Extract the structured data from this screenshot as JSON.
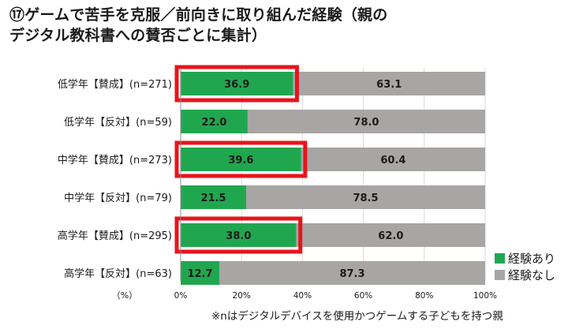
{
  "chart_data": {
    "type": "bar",
    "stacked": true,
    "orientation": "horizontal",
    "title_lines": [
      "⑰ゲームで苦手を克服／前向きに取り組んだ経験（親の",
      "デジタル教科書への賛否ごとに集計）"
    ],
    "categories": [
      "低学年【賛成】(n=271)",
      "低学年【反対】(n=59)",
      "中学年【賛成】(n=273)",
      "中学年【反対】(n=79)",
      "高学年【賛成】(n=295)",
      "高学年【反対】(n=63)"
    ],
    "series": [
      {
        "name": "経験あり",
        "color": "#21a650",
        "values": [
          36.9,
          22.0,
          39.6,
          21.5,
          38.0,
          12.7
        ]
      },
      {
        "name": "経験なし",
        "color": "#a8a5a5",
        "values": [
          63.1,
          78.0,
          60.4,
          78.5,
          62.0,
          87.3
        ]
      }
    ],
    "value_labels": [
      [
        "36.9",
        "22.0",
        "39.6",
        "21.5",
        "38.0",
        "12.7"
      ],
      [
        "63.1",
        "78.0",
        "60.4",
        "78.5",
        "62.0",
        "87.3"
      ]
    ],
    "xlim": [
      0,
      100
    ],
    "xticks": [
      "0%",
      "20%",
      "40%",
      "60%",
      "80%",
      "100%"
    ],
    "unit_label": "（%）",
    "highlighted_categories": [
      0,
      2,
      4
    ],
    "highlight_color": "#e8141b",
    "legend_position": "right"
  },
  "footnote": "※nはデジタルデバイスを使用かつゲームする子どもを持つ親"
}
